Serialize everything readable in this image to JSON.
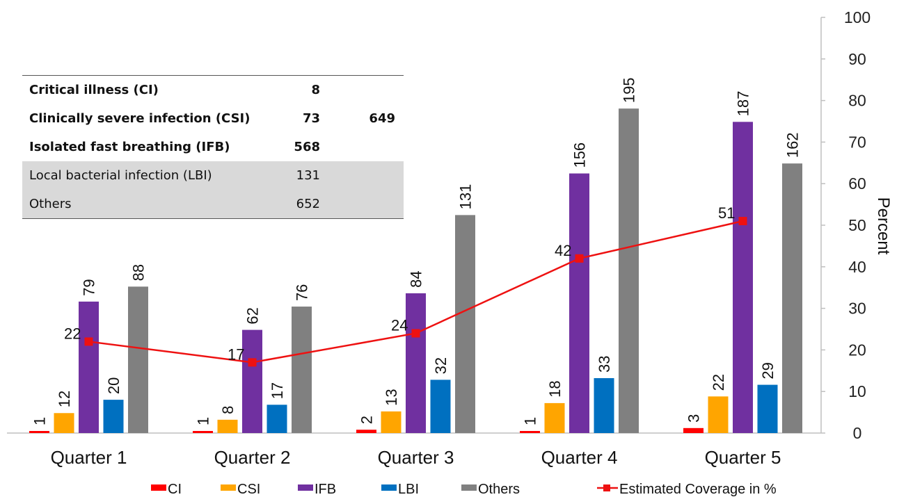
{
  "table": {
    "rows": [
      {
        "label": "Critical illness (CI)",
        "value": "8",
        "total": "",
        "bold": true
      },
      {
        "label": "Clinically severe infection (CSI)",
        "value": "73",
        "total": "649",
        "bold": true
      },
      {
        "label": "Isolated fast breathing (IFB)",
        "value": "568",
        "total": "",
        "bold": true
      },
      {
        "label": "Local bacterial infection (LBI)",
        "value": "131",
        "total": "",
        "bold": false
      },
      {
        "label": "Others",
        "value": "652",
        "total": "",
        "bold": false
      }
    ]
  },
  "chart_data": {
    "type": "bar",
    "categories": [
      "Quarter 1",
      "Quarter 2",
      "Quarter 3",
      "Quarter 4",
      "Quarter 5"
    ],
    "series": [
      {
        "name": "CI",
        "color": "#ff0000",
        "values": [
          1,
          1,
          2,
          1,
          3
        ]
      },
      {
        "name": "CSI",
        "color": "#ffa500",
        "values": [
          12,
          8,
          13,
          18,
          22
        ]
      },
      {
        "name": "IFB",
        "color": "#7030a0",
        "values": [
          79,
          62,
          84,
          156,
          187
        ]
      },
      {
        "name": "LBI",
        "color": "#0070c0",
        "values": [
          20,
          17,
          32,
          33,
          29
        ]
      },
      {
        "name": "Others",
        "color": "#808080",
        "values": [
          88,
          76,
          131,
          195,
          162
        ]
      }
    ],
    "bar_axis_max": 250,
    "line": {
      "name": "Estimated Coverage in %",
      "color": "#ee1111",
      "axis": "right",
      "values": [
        22,
        17,
        24,
        42,
        51
      ]
    },
    "right_axis": {
      "label": "Percent",
      "ylim": [
        0,
        100
      ],
      "ticks": [
        "0",
        "10",
        "20",
        "30",
        "40",
        "50",
        "60",
        "70",
        "80",
        "90",
        "100"
      ]
    },
    "grid": false,
    "legend_position": "bottom"
  }
}
